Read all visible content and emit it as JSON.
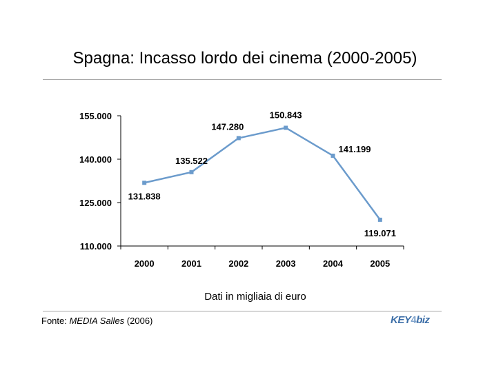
{
  "chart_data": {
    "type": "line",
    "title": "Spagna: Incasso lordo dei cinema (2000-2005)",
    "categories": [
      "2000",
      "2001",
      "2002",
      "2003",
      "2004",
      "2005"
    ],
    "series": [
      {
        "name": "Incasso lordo",
        "values": [
          131838,
          135522,
          147280,
          150843,
          141199,
          119071
        ],
        "labels": [
          "131.838",
          "135.522",
          "147.280",
          "150.843",
          "141.199",
          "119.071"
        ],
        "color": "#6b9bcc"
      }
    ],
    "yticks": [
      110000,
      125000,
      140000,
      155000
    ],
    "ytick_labels": [
      "110.000",
      "125.000",
      "140.000",
      "155.000"
    ],
    "ylim": [
      110000,
      155000
    ],
    "xlabel": "",
    "ylabel": "",
    "note": "Dati in migliaia di euro",
    "grid": false
  },
  "source": {
    "prefix": "Fonte: ",
    "name": "MEDIA Salles",
    "suffix": " (2006)"
  },
  "logo": {
    "text_a": "KEY",
    "text_b": "4",
    "text_c": "biz"
  }
}
